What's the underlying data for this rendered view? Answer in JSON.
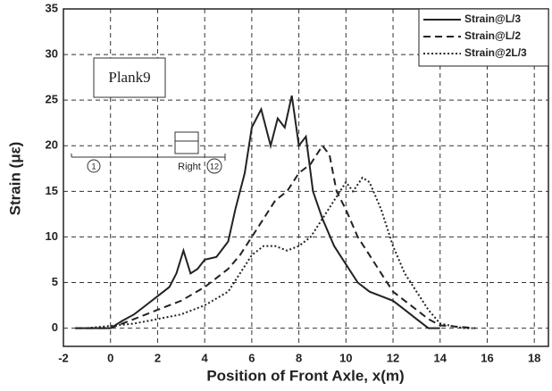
{
  "chart_data": {
    "type": "line",
    "x_label": "Position of Front Axle, x(m)",
    "y_label": "Strain (με)",
    "xlim": [
      -2,
      18.6
    ],
    "ylim": [
      -2,
      35
    ],
    "xticks": [
      -2,
      0,
      2,
      4,
      6,
      8,
      10,
      12,
      14,
      16,
      18
    ],
    "yticks": [
      0,
      5,
      10,
      15,
      20,
      25,
      30,
      35
    ],
    "grid": true,
    "legend": "upper right",
    "annotations": [
      "Plank9",
      "1",
      "12",
      "Right"
    ],
    "series": [
      {
        "name": "Strain@L/3",
        "color": "#222222",
        "style": "solid",
        "x": [
          -1.5,
          0,
          0.5,
          1,
          1.5,
          2,
          2.5,
          2.8,
          3.1,
          3.4,
          3.7,
          4,
          4.5,
          5,
          5.3,
          5.7,
          6,
          6.4,
          6.8,
          7.1,
          7.4,
          7.7,
          8,
          8.3,
          8.6,
          9,
          9.5,
          10,
          10.5,
          11,
          11.5,
          12,
          12.5,
          13,
          13.5,
          14
        ],
        "values": [
          0,
          0,
          0.8,
          1.5,
          2.5,
          3.5,
          4.5,
          6,
          8.5,
          6,
          6.5,
          7.5,
          7.8,
          9.5,
          13,
          17,
          22,
          24,
          20,
          23,
          22,
          25.5,
          20,
          21,
          15,
          12,
          9,
          7,
          5,
          4,
          3.5,
          3,
          2,
          1,
          0,
          0
        ]
      },
      {
        "name": "Strain@L/2",
        "color": "#222222",
        "style": "dashed",
        "x": [
          -1.5,
          0,
          1,
          2,
          3,
          4,
          5,
          5.5,
          6,
          6.5,
          7,
          7.5,
          8,
          8.5,
          9,
          9.3,
          9.6,
          10,
          10.5,
          11,
          11.5,
          12,
          12.5,
          13,
          13.5,
          14,
          15.5
        ],
        "values": [
          0,
          0,
          1,
          2,
          3,
          4.5,
          6.5,
          8,
          10,
          12,
          14,
          15,
          17,
          18,
          20,
          19,
          15,
          13,
          10,
          8,
          6,
          4,
          3,
          2,
          1,
          0.3,
          0
        ]
      },
      {
        "name": "Strain@2L/3",
        "color": "#222222",
        "style": "dotted",
        "x": [
          -1,
          1,
          2,
          3,
          4,
          5,
          6,
          6.5,
          7,
          7.5,
          8,
          8.5,
          9,
          9.5,
          10,
          10.3,
          10.7,
          11,
          11.5,
          12,
          12.5,
          13,
          13.5,
          14,
          15,
          15.5
        ],
        "values": [
          0,
          0.5,
          1,
          1.5,
          2.5,
          4,
          8,
          9,
          9,
          8.5,
          9,
          10,
          12,
          14,
          16,
          15,
          16.5,
          16,
          13,
          9,
          6,
          4,
          2,
          0.5,
          0,
          0
        ]
      }
    ]
  }
}
